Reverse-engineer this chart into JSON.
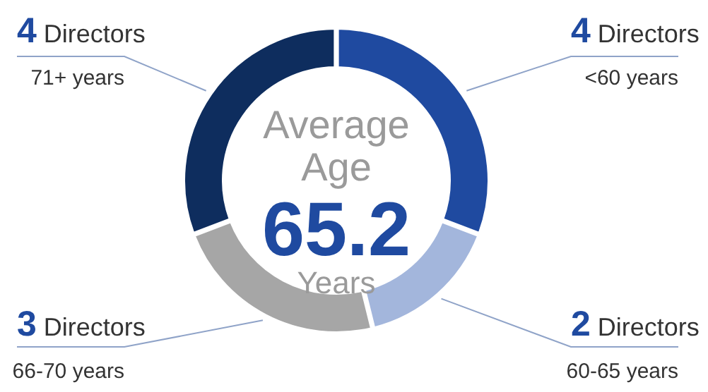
{
  "chart_data": {
    "type": "donut",
    "categories": [
      "<60 years",
      "60-65 years",
      "66-70 years",
      "71+ years"
    ],
    "values": [
      4,
      2,
      3,
      4
    ],
    "colors": [
      "#1f4aa0",
      "#a3b6dc",
      "#a6a6a6",
      "#0e2d5e"
    ],
    "value_labels": [
      "4 Directors",
      "2 Directors",
      "3 Directors",
      "4 Directors"
    ],
    "annotations": [
      "Average Age",
      "65.2",
      "Years"
    ]
  }
}
